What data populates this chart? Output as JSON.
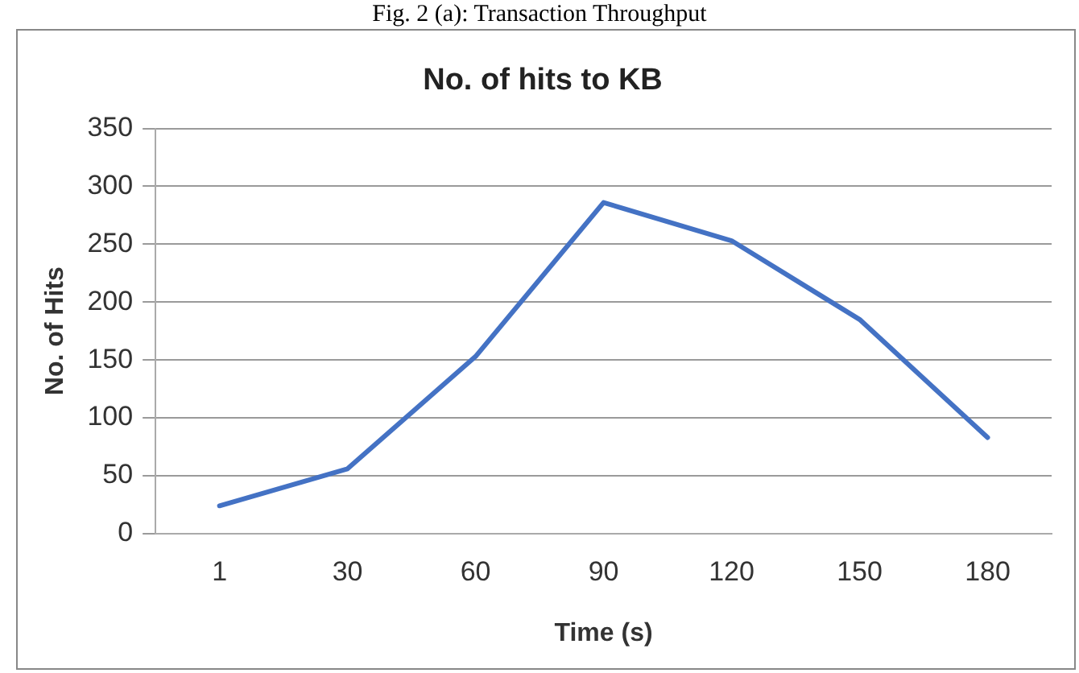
{
  "chart_data": {
    "type": "line",
    "title": "No. of hits to KB",
    "xlabel": "Time (s)",
    "ylabel": "No. of Hits",
    "annotations": [
      "Fig. 2 (a): Transaction Throughput"
    ],
    "categories": [
      "1",
      "30",
      "60",
      "90",
      "120",
      "150",
      "180"
    ],
    "series": [
      {
        "color": "#4472c4",
        "values": [
          24,
          56,
          153,
          286,
          253,
          185,
          83
        ]
      }
    ],
    "ylim": [
      0,
      350
    ],
    "yticks": [
      0,
      50,
      100,
      150,
      200,
      250,
      300,
      350
    ],
    "grid": "y",
    "legend": false,
    "marker": "none",
    "line_style": "solid"
  }
}
